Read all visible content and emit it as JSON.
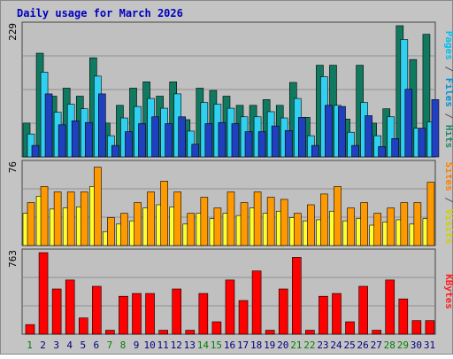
{
  "chart_data": {
    "type": "bar",
    "title": "Daily usage for March 2026",
    "categories": [
      "1",
      "2",
      "3",
      "4",
      "5",
      "6",
      "7",
      "8",
      "9",
      "10",
      "11",
      "12",
      "13",
      "14",
      "15",
      "16",
      "17",
      "18",
      "19",
      "20",
      "21",
      "22",
      "23",
      "24",
      "25",
      "26",
      "27",
      "28",
      "29",
      "30",
      "31"
    ],
    "weekend_days": [
      "1",
      "7",
      "8",
      "14",
      "15",
      "21",
      "22",
      "28",
      "29"
    ],
    "panels": [
      {
        "id": "hits_files_pages",
        "ymax_label": "229",
        "ylim": [
          0,
          229
        ],
        "label_parts": [
          {
            "text": "Pages",
            "color": "#00c0f0"
          },
          {
            "text": " / ",
            "color": "#555555"
          },
          {
            "text": "Files",
            "color": "#0090d0"
          },
          {
            "text": " / ",
            "color": "#555555"
          },
          {
            "text": "Hits",
            "color": "#228866"
          }
        ],
        "series": [
          {
            "name": "Hits",
            "color": "#107a60",
            "values": [
              59,
              181,
              106,
              120,
              106,
              173,
              59,
              90,
              120,
              131,
              106,
              131,
              65,
              120,
              116,
              106,
              90,
              90,
              100,
              90,
              130,
              69,
              160,
              160,
              66,
              160,
              59,
              84,
              229,
              170,
              214
            ]
          },
          {
            "name": "Files",
            "color": "#30d0f0",
            "values": [
              40,
              148,
              78,
              92,
              84,
              141,
              37,
              68,
              88,
              102,
              85,
              110,
              45,
              95,
              92,
              85,
              70,
              70,
              79,
              68,
              102,
              37,
              140,
              90,
              43,
              95,
              37,
              70,
              205,
              50,
              61
            ]
          },
          {
            "name": "Pages",
            "color": "#2040c0",
            "values": [
              20,
              110,
              56,
              63,
              60,
              110,
              20,
              44,
              58,
              70,
              58,
              70,
              22,
              58,
              60,
              58,
              44,
              44,
              54,
              46,
              69,
              20,
              90,
              88,
              20,
              72,
              18,
              32,
              118,
              50,
              100
            ]
          }
        ]
      },
      {
        "id": "visits_sites",
        "ymax_label": "76",
        "ylim": [
          0,
          76
        ],
        "label_parts": [
          {
            "text": "Sites",
            "color": "#ff8000"
          },
          {
            "text": " / ",
            "color": "#555555"
          },
          {
            "text": "Visits",
            "color": "#d0d000"
          }
        ],
        "series": [
          {
            "name": "Visits",
            "color": "#ffff30",
            "values": [
              30,
              46,
              34,
              35,
              36,
              55,
              13,
              20,
              23,
              35,
              38,
              36,
              20,
              30,
              25,
              30,
              28,
              35,
              30,
              32,
              26,
              23,
              24,
              32,
              23,
              25,
              19,
              22,
              24,
              20,
              25
            ]
          },
          {
            "name": "Sites",
            "color": "#ff9900",
            "values": [
              40,
              55,
              50,
              50,
              50,
              73,
              26,
              30,
              40,
              50,
              60,
              50,
              30,
              45,
              35,
              50,
              40,
              50,
              45,
              43,
              30,
              38,
              48,
              55,
              35,
              40,
              30,
              35,
              40,
              40,
              59
            ]
          }
        ]
      },
      {
        "id": "kbytes",
        "ymax_label": "763",
        "ylim": [
          0,
          763
        ],
        "label_parts": [
          {
            "text": "KBytes",
            "color": "#ff2020"
          }
        ],
        "series": [
          {
            "name": "KBytes",
            "color": "#ff0000",
            "values": [
              90,
              763,
              423,
              507,
              152,
              448,
              37,
              355,
              381,
              381,
              37,
              423,
              37,
              381,
              116,
              507,
              315,
              592,
              37,
              423,
              718,
              37,
              355,
              381,
              116,
              448,
              37,
              507,
              330,
              127,
              127
            ]
          }
        ]
      }
    ]
  }
}
